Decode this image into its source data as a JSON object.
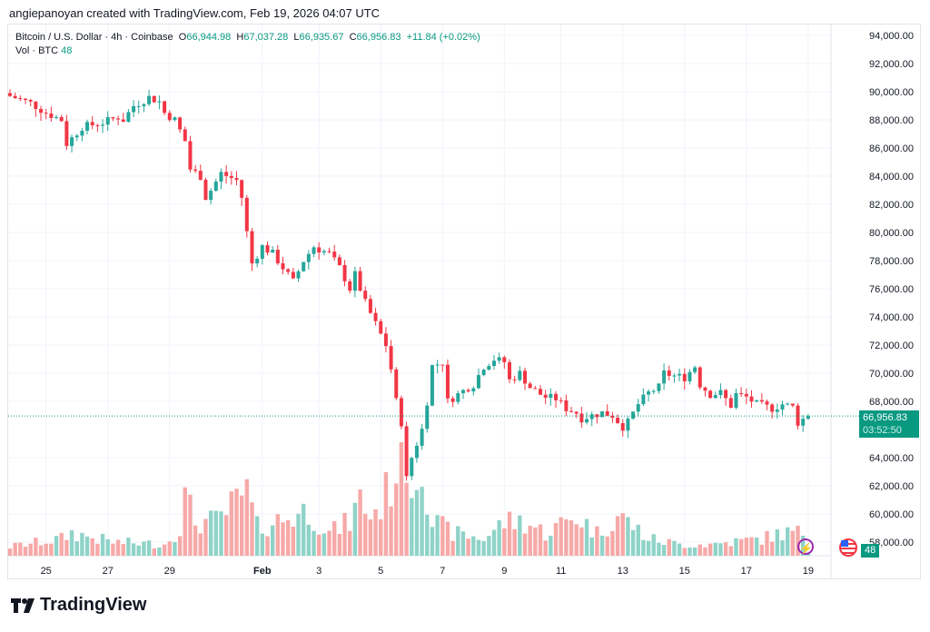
{
  "credit": "angiepanoyan created with TradingView.com, Feb 19, 2026 04:07 UTC",
  "legend": {
    "symbol": "Bitcoin / U.S. Dollar · 4h · Coinbase",
    "o_label": "O",
    "o": "66,944.98",
    "h_label": "H",
    "h": "67,037.28",
    "l_label": "L",
    "l": "66,935.67",
    "c_label": "C",
    "c": "66,956.83",
    "change": "+11.84 (+0.02%)",
    "vol_label": "Vol · BTC",
    "vol": "48"
  },
  "price_tag": {
    "price": "66,956.83",
    "countdown": "03:52:50"
  },
  "vol_tag": "48",
  "logo": "TradingView",
  "colors": {
    "up": "#26a69a",
    "down": "#f23645",
    "up_vol": "#8fd3c8",
    "down_vol": "#f7a9a7",
    "tag": "#089981"
  },
  "chart_data": {
    "type": "candlestick",
    "title": "Bitcoin / U.S. Dollar · 4h · Coinbase",
    "ylim": [
      57000,
      94000
    ],
    "y_ticks": [
      "94,000.00",
      "92,000.00",
      "90,000.00",
      "88,000.00",
      "86,000.00",
      "84,000.00",
      "82,000.00",
      "80,000.00",
      "78,000.00",
      "76,000.00",
      "74,000.00",
      "72,000.00",
      "70,000.00",
      "68,000.00",
      "64,000.00",
      "62,000.00",
      "60,000.00",
      "58,000.00"
    ],
    "x_ticks": [
      {
        "label": "25",
        "bar": 7
      },
      {
        "label": "27",
        "bar": 19
      },
      {
        "label": "29",
        "bar": 31
      },
      {
        "label": "Feb",
        "bar": 49
      },
      {
        "label": "3",
        "bar": 60
      },
      {
        "label": "5",
        "bar": 72
      },
      {
        "label": "7",
        "bar": 84
      },
      {
        "label": "9",
        "bar": 96
      },
      {
        "label": "11",
        "bar": 107
      },
      {
        "label": "13",
        "bar": 119
      },
      {
        "label": "15",
        "bar": 131
      },
      {
        "label": "17",
        "bar": 143
      },
      {
        "label": "19",
        "bar": 155
      }
    ],
    "bars": 156,
    "close_path": [
      [
        0,
        89700
      ],
      [
        4,
        89200
      ],
      [
        7,
        88500
      ],
      [
        10,
        88000
      ],
      [
        11,
        86300
      ],
      [
        14,
        87500
      ],
      [
        18,
        87800
      ],
      [
        21,
        88200
      ],
      [
        22,
        88000
      ],
      [
        24,
        89000
      ],
      [
        27,
        89600
      ],
      [
        29,
        89300
      ],
      [
        30,
        88500
      ],
      [
        32,
        88000
      ],
      [
        34,
        86500
      ],
      [
        35,
        84500
      ],
      [
        37,
        84000
      ],
      [
        38,
        82500
      ],
      [
        39,
        83000
      ],
      [
        41,
        84200
      ],
      [
        44,
        83700
      ],
      [
        45,
        82500
      ],
      [
        46,
        80000
      ],
      [
        47,
        77800
      ],
      [
        49,
        79000
      ],
      [
        51,
        78500
      ],
      [
        53,
        77500
      ],
      [
        55,
        76500
      ],
      [
        57,
        78000
      ],
      [
        59,
        79000
      ],
      [
        60,
        78800
      ],
      [
        62,
        78500
      ],
      [
        64,
        77500
      ],
      [
        66,
        76000
      ],
      [
        67,
        77000
      ],
      [
        69,
        75000
      ],
      [
        71,
        73500
      ],
      [
        73,
        72000
      ],
      [
        74,
        70300
      ],
      [
        75,
        68000
      ],
      [
        76,
        66500
      ],
      [
        77,
        62500
      ],
      [
        78,
        64000
      ],
      [
        80,
        66000
      ],
      [
        81,
        68000
      ],
      [
        82,
        70500
      ],
      [
        84,
        70800
      ],
      [
        85,
        68000
      ],
      [
        87,
        68500
      ],
      [
        89,
        69000
      ],
      [
        90,
        69200
      ],
      [
        92,
        70500
      ],
      [
        94,
        71000
      ],
      [
        96,
        70800
      ],
      [
        97,
        69500
      ],
      [
        99,
        70000
      ],
      [
        101,
        69000
      ],
      [
        103,
        68500
      ],
      [
        104,
        68300
      ],
      [
        106,
        68200
      ],
      [
        108,
        67500
      ],
      [
        110,
        67200
      ],
      [
        111,
        66800
      ],
      [
        113,
        67000
      ],
      [
        115,
        67200
      ],
      [
        117,
        67000
      ],
      [
        119,
        66200
      ],
      [
        120,
        66500
      ],
      [
        122,
        67800
      ],
      [
        124,
        68600
      ],
      [
        126,
        69000
      ],
      [
        127,
        70000
      ],
      [
        129,
        69800
      ],
      [
        131,
        69700
      ],
      [
        133,
        70500
      ],
      [
        134,
        69200
      ],
      [
        136,
        68500
      ],
      [
        138,
        68600
      ],
      [
        140,
        67700
      ],
      [
        141,
        68500
      ],
      [
        143,
        68300
      ],
      [
        145,
        67800
      ],
      [
        147,
        67600
      ],
      [
        148,
        67500
      ],
      [
        150,
        67800
      ],
      [
        152,
        67600
      ],
      [
        153,
        66500
      ],
      [
        155,
        66957
      ]
    ],
    "volume_path": [
      [
        0,
        0.08
      ],
      [
        10,
        0.15
      ],
      [
        12,
        0.2
      ],
      [
        20,
        0.12
      ],
      [
        30,
        0.1
      ],
      [
        33,
        0.25
      ],
      [
        34,
        0.5
      ],
      [
        36,
        0.3
      ],
      [
        40,
        0.3
      ],
      [
        46,
        0.55
      ],
      [
        48,
        0.25
      ],
      [
        55,
        0.35
      ],
      [
        58,
        0.4
      ],
      [
        62,
        0.2
      ],
      [
        66,
        0.3
      ],
      [
        68,
        0.5
      ],
      [
        70,
        0.35
      ],
      [
        72,
        0.45
      ],
      [
        74,
        0.65
      ],
      [
        76,
        0.95
      ],
      [
        77,
        1.0
      ],
      [
        78,
        0.6
      ],
      [
        80,
        0.9
      ],
      [
        82,
        0.3
      ],
      [
        86,
        0.2
      ],
      [
        92,
        0.15
      ],
      [
        96,
        0.3
      ],
      [
        100,
        0.3
      ],
      [
        104,
        0.2
      ],
      [
        108,
        0.3
      ],
      [
        110,
        0.35
      ],
      [
        114,
        0.2
      ],
      [
        118,
        0.35
      ],
      [
        120,
        0.3
      ],
      [
        124,
        0.15
      ],
      [
        130,
        0.1
      ],
      [
        136,
        0.1
      ],
      [
        140,
        0.12
      ],
      [
        146,
        0.15
      ],
      [
        150,
        0.2
      ],
      [
        154,
        0.2
      ],
      [
        155,
        0.04
      ]
    ]
  }
}
